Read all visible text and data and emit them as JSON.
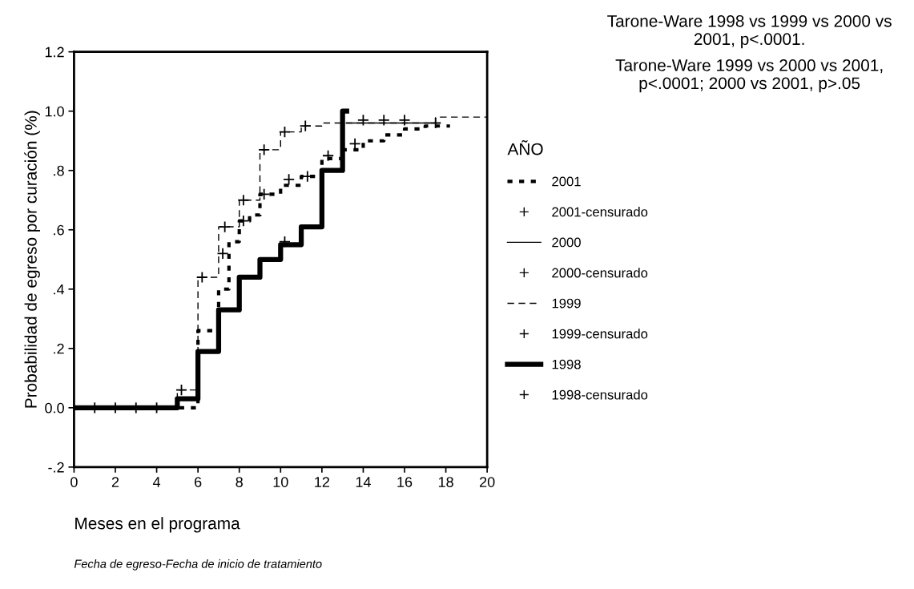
{
  "chart_data": {
    "type": "step",
    "xlabel": "Meses en el programa",
    "ylabel": "Probabilidad de egreso por curación (%)",
    "legend_title": "AÑO",
    "legend": "right",
    "grid": false,
    "annotations": [
      "Tarone-Ware 1998 vs 1999 vs 2000 vs 2001, p<.0001.",
      "Tarone-Ware 1999 vs 2000 vs 2001, p<.0001; 2000 vs 2001, p>.05",
      "Fecha de egreso-Fecha de inicio de tratamiento"
    ],
    "xlim": [
      0,
      20
    ],
    "xticks": [
      0,
      2,
      4,
      6,
      8,
      10,
      12,
      14,
      16,
      18,
      20
    ],
    "ylim": [
      -0.2,
      1.2
    ],
    "yticks": [
      {
        "value": -0.2,
        "label": "-.2"
      },
      {
        "value": 0,
        "label": "0.0"
      },
      {
        "value": 0.2,
        "label": ".2"
      },
      {
        "value": 0.4,
        "label": ".4"
      },
      {
        "value": 0.6,
        "label": ".6"
      },
      {
        "value": 0.8,
        "label": ".8"
      },
      {
        "value": 1.0,
        "label": "1.0"
      },
      {
        "value": 1.2,
        "label": "1.2"
      }
    ],
    "series": [
      {
        "name": "2001",
        "line_style": "dotted",
        "color": "#000000",
        "x": [
          0,
          6,
          7,
          7.5,
          8,
          8.5,
          9,
          10,
          11,
          12,
          13,
          14,
          15,
          16,
          17,
          18.2
        ],
        "values": [
          0,
          0.26,
          0.4,
          0.56,
          0.63,
          0.65,
          0.72,
          0.75,
          0.78,
          0.84,
          0.87,
          0.9,
          0.92,
          0.94,
          0.95,
          0.95
        ]
      },
      {
        "name": "2001-censurado",
        "type": "scatter",
        "marker": "cross",
        "color": "#000000",
        "x": [
          7.2,
          8.2,
          9.2,
          10.4,
          11.3,
          12.3,
          13.6
        ],
        "values": [
          0.52,
          0.63,
          0.72,
          0.77,
          0.78,
          0.85,
          0.89
        ]
      },
      {
        "name": "2000",
        "line_style": "solid",
        "color": "#000000",
        "x": [
          13.2,
          17.2
        ],
        "values": [
          0.96,
          0.96
        ]
      },
      {
        "name": "2000-censurado",
        "type": "scatter",
        "marker": "cross",
        "color": "#000000",
        "x": [
          17.5
        ],
        "values": [
          0.96
        ]
      },
      {
        "name": "1999",
        "line_style": "dashed",
        "color": "#000000",
        "x": [
          0,
          5,
          6,
          7,
          8,
          9,
          10,
          11,
          12,
          13,
          17.5,
          20
        ],
        "values": [
          0,
          0.06,
          0.44,
          0.61,
          0.7,
          0.87,
          0.93,
          0.95,
          0.96,
          0.96,
          0.98,
          0.98
        ]
      },
      {
        "name": "1999-censurado",
        "type": "scatter",
        "marker": "cross",
        "color": "#000000",
        "x": [
          5.2,
          6.2,
          7.3,
          8.2,
          9.2,
          10.2,
          11.2,
          14,
          15,
          16
        ],
        "values": [
          0.06,
          0.44,
          0.61,
          0.7,
          0.87,
          0.93,
          0.95,
          0.97,
          0.97,
          0.97
        ]
      },
      {
        "name": "1998",
        "line_style": "solid",
        "color": "#000000",
        "x": [
          0,
          5,
          6,
          7,
          8,
          9,
          10,
          11,
          12,
          13,
          13.2
        ],
        "values": [
          0,
          0.03,
          0.19,
          0.33,
          0.44,
          0.5,
          0.55,
          0.61,
          0.8,
          1.0,
          1.0
        ]
      },
      {
        "name": "1998-censurado",
        "type": "scatter",
        "marker": "cross",
        "color": "#000000",
        "x": [
          1,
          2,
          3,
          4,
          10.2
        ],
        "values": [
          0,
          0,
          0,
          0,
          0.56
        ]
      }
    ]
  }
}
